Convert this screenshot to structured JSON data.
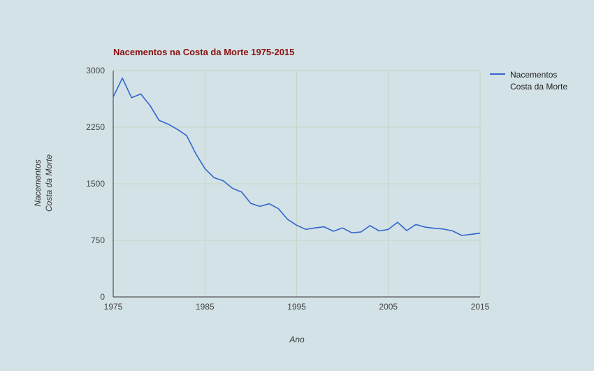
{
  "chart_data": {
    "type": "line",
    "title": "Nacementos na Costa da Morte 1975-2015",
    "xlabel": "Ano",
    "ylabel": [
      "Nacementos",
      "Costa da Morte"
    ],
    "xlim": [
      1975,
      2015
    ],
    "ylim": [
      0,
      3000
    ],
    "x_ticks": [
      1975,
      1985,
      1995,
      2005,
      2015
    ],
    "y_ticks": [
      0,
      750,
      1500,
      2250,
      3000
    ],
    "grid": true,
    "legend_position": "right",
    "colors": {
      "background": "#d3e2e6",
      "line": "#3366cc",
      "grid": "#c3d6c6",
      "title": "#8b1010",
      "text": "#444444"
    },
    "series": [
      {
        "name": [
          "Nacementos",
          "Costa da Morte"
        ],
        "x": [
          1975,
          1976,
          1977,
          1978,
          1979,
          1980,
          1981,
          1982,
          1983,
          1984,
          1985,
          1986,
          1987,
          1988,
          1989,
          1990,
          1991,
          1992,
          1993,
          1994,
          1995,
          1996,
          1997,
          1998,
          1999,
          2000,
          2001,
          2002,
          2003,
          2004,
          2005,
          2006,
          2007,
          2008,
          2009,
          2010,
          2011,
          2012,
          2013,
          2014,
          2015
        ],
        "values": [
          2650,
          2900,
          2640,
          2690,
          2540,
          2340,
          2290,
          2220,
          2140,
          1900,
          1700,
          1580,
          1540,
          1440,
          1390,
          1240,
          1200,
          1235,
          1170,
          1030,
          950,
          895,
          915,
          930,
          870,
          915,
          850,
          860,
          945,
          875,
          895,
          990,
          880,
          960,
          925,
          910,
          900,
          875,
          815,
          830,
          845
        ]
      }
    ]
  }
}
